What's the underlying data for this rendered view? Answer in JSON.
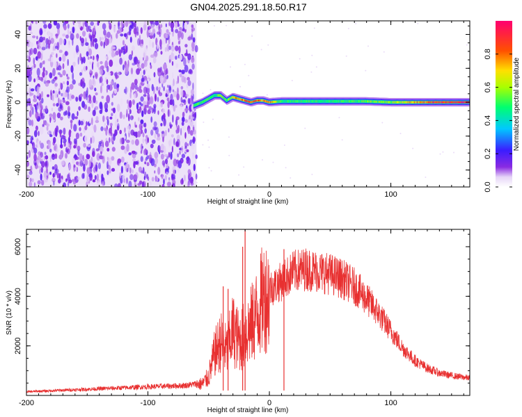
{
  "figure": {
    "title": "GN04.2025.291.18.50.R17"
  },
  "chart_data": [
    {
      "type": "heatmap",
      "title": "GN04.2025.291.18.50.R17",
      "xlabel": "Height of straight line (km)",
      "ylabel": "Frequency (Hz)",
      "xlim": [
        -200,
        165
      ],
      "ylim": [
        -50,
        48
      ],
      "x_ticks": [
        -200,
        -100,
        0,
        100
      ],
      "x_tick_labels": [
        "-200",
        "-100",
        "0",
        "100"
      ],
      "y_ticks": [
        -40,
        -20,
        0,
        20,
        40
      ],
      "y_tick_labels": [
        "-40",
        "-20",
        "0",
        "20",
        "40"
      ],
      "colorbar": {
        "label": "Normalized spectral amplitude",
        "range": [
          0,
          1
        ],
        "ticks": [
          0.0,
          0.2,
          0.4,
          0.6,
          0.8
        ],
        "tick_labels": [
          "0.0",
          "0.2",
          "0.4",
          "0.6",
          "0.8"
        ],
        "colormap": "rainbow (white-violet-blue-cyan-green-yellow-red-magenta)"
      },
      "regions": [
        {
          "x_range": [
            -200,
            -60
          ],
          "description": "noise, amplitude ~0.05-0.15 across all frequencies"
        },
        {
          "x_range": [
            -60,
            165
          ],
          "description": "signal line near 0 Hz, amplitude ~0.4-1.0"
        }
      ],
      "signal_line": {
        "x": [
          -62,
          -55,
          -50,
          -45,
          -40,
          -35,
          -30,
          -25,
          -20,
          -15,
          -10,
          -5,
          0,
          10,
          20,
          40,
          60,
          80,
          100,
          120,
          140,
          165
        ],
        "frequency": [
          -2,
          0,
          2,
          4,
          4,
          1,
          3,
          2,
          1,
          0,
          1,
          1,
          0,
          0.5,
          0.5,
          0.5,
          0.5,
          0.5,
          0,
          0,
          0,
          0
        ],
        "amplitude": [
          0.5,
          0.55,
          0.55,
          0.5,
          0.6,
          0.5,
          0.7,
          0.8,
          0.85,
          0.85,
          0.8,
          0.8,
          0.8,
          0.5,
          0.5,
          0.5,
          0.5,
          0.55,
          0.6,
          0.75,
          0.9,
          0.95
        ]
      }
    },
    {
      "type": "line",
      "xlabel": "Height of straight line (km)",
      "ylabel": "SNR (10 * v/v)",
      "xlim": [
        -200,
        165
      ],
      "ylim": [
        0,
        6700
      ],
      "x_ticks": [
        -200,
        -100,
        0,
        100
      ],
      "x_tick_labels": [
        "-200",
        "-100",
        "0",
        "100"
      ],
      "y_ticks": [
        2000,
        4000,
        6000
      ],
      "y_tick_labels": [
        "2000",
        "4000",
        "6000"
      ],
      "color": "#e83030",
      "envelope": {
        "x": [
          -200,
          -150,
          -100,
          -70,
          -55,
          -50,
          -45,
          -40,
          -35,
          -30,
          -25,
          -20,
          -15,
          -10,
          -5,
          0,
          10,
          20,
          30,
          40,
          50,
          60,
          70,
          80,
          90,
          100,
          110,
          120,
          130,
          140,
          150,
          165
        ],
        "y": [
          150,
          250,
          350,
          400,
          500,
          800,
          1800,
          2300,
          1900,
          2800,
          2300,
          2600,
          3000,
          3500,
          4200,
          4300,
          4600,
          5000,
          5100,
          5000,
          4900,
          4700,
          4400,
          3900,
          3300,
          2600,
          1900,
          1400,
          1100,
          900,
          800,
          700
        ]
      },
      "spikes": [
        {
          "x": -38,
          "y": 4400
        },
        {
          "x": -34,
          "y": 4300
        },
        {
          "x": -22,
          "y": 6000
        },
        {
          "x": -20,
          "y": 6700
        },
        {
          "x": 12,
          "y": 5900
        }
      ]
    }
  ]
}
